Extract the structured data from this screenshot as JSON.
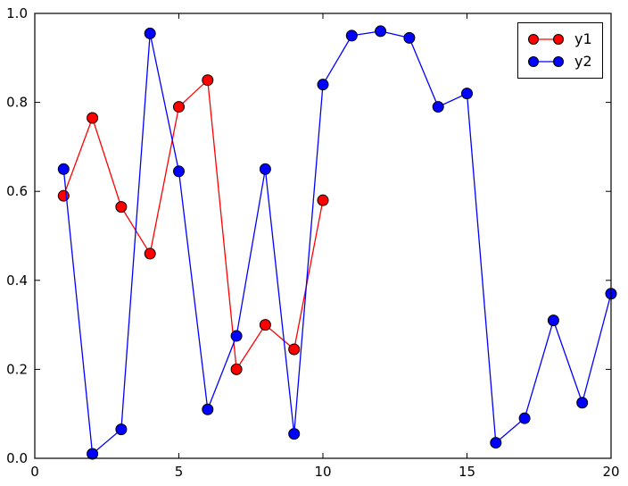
{
  "chart_data": {
    "type": "line",
    "title": "",
    "xlabel": "",
    "ylabel": "",
    "xlim": [
      0,
      20
    ],
    "ylim": [
      0.0,
      1.0
    ],
    "xticks": [
      "0",
      "5",
      "10",
      "15",
      "20"
    ],
    "xtick_values": [
      0,
      5,
      10,
      15,
      20
    ],
    "yticks": [
      "0.0",
      "0.2",
      "0.4",
      "0.6",
      "0.8",
      "1.0"
    ],
    "ytick_values": [
      0.0,
      0.2,
      0.4,
      0.6,
      0.8,
      1.0
    ],
    "grid": false,
    "legend_position": "upper right",
    "marker": "circle",
    "marker_edge_color": "#000000",
    "background": "#ffffff",
    "axis_color": "#000000",
    "series": [
      {
        "name": "y1",
        "color": "#ff0000",
        "x": [
          1,
          2,
          3,
          4,
          5,
          6,
          7,
          8,
          9,
          10
        ],
        "values": [
          0.59,
          0.765,
          0.565,
          0.46,
          0.79,
          0.85,
          0.2,
          0.3,
          0.245,
          0.58
        ]
      },
      {
        "name": "y2",
        "color": "#0000ff",
        "x": [
          1,
          2,
          3,
          4,
          5,
          6,
          7,
          8,
          9,
          10,
          11,
          12,
          13,
          14,
          15,
          16,
          17,
          18,
          19,
          20
        ],
        "values": [
          0.65,
          0.01,
          0.065,
          0.955,
          0.645,
          0.11,
          0.275,
          0.65,
          0.055,
          0.84,
          0.95,
          0.96,
          0.945,
          0.79,
          0.82,
          0.035,
          0.09,
          0.31,
          0.125,
          0.37
        ]
      }
    ]
  }
}
